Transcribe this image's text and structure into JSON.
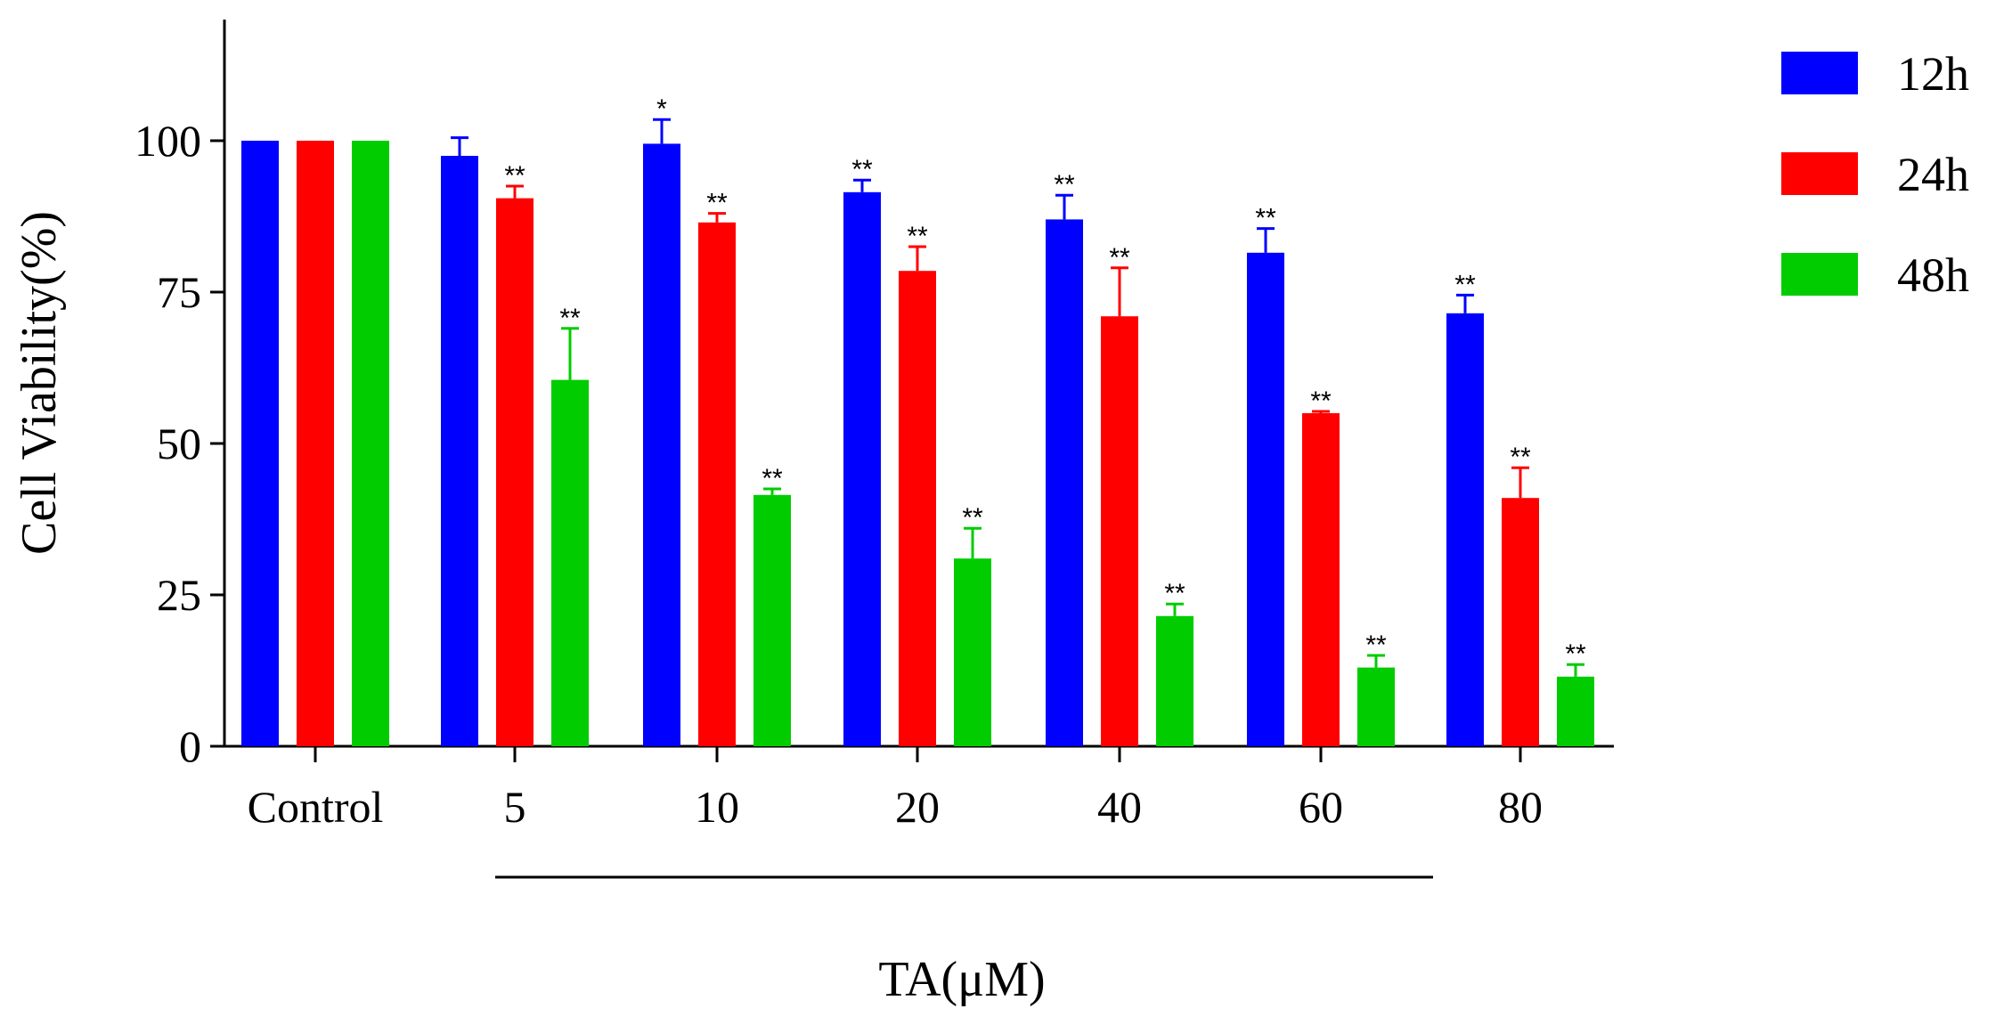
{
  "chart_data": {
    "type": "bar",
    "title": "",
    "xlabel": "TA(μM)",
    "ylabel": "Cell Viability(%)",
    "ylim": [
      0,
      120
    ],
    "yticks": [
      0,
      25,
      50,
      75,
      100
    ],
    "ytick_labels": [
      "0",
      "25",
      "50",
      "75",
      "100"
    ],
    "categories": [
      "Control",
      "5",
      "10",
      "20",
      "40",
      "60",
      "80"
    ],
    "treatment_bracket": {
      "from": "5",
      "to": "80"
    },
    "legend_position": "top-right",
    "series": [
      {
        "name": "12h",
        "color": "#0000FF",
        "values": [
          100,
          97.5,
          99.5,
          91.5,
          87,
          81.5,
          71.5
        ],
        "errors": [
          0,
          3,
          4,
          2,
          4,
          4,
          3
        ],
        "stars": [
          "",
          "",
          "*",
          "**",
          "**",
          "**",
          "**"
        ]
      },
      {
        "name": "24h",
        "color": "#FF0000",
        "values": [
          100,
          90.5,
          86.5,
          78.5,
          71,
          55,
          41
        ],
        "errors": [
          0,
          2,
          1.5,
          4,
          8,
          0.3,
          5
        ],
        "stars": [
          "",
          "**",
          "**",
          "**",
          "**",
          "**",
          "**"
        ]
      },
      {
        "name": "48h",
        "color": "#00CC00",
        "values": [
          100,
          60.5,
          41.5,
          31,
          21.5,
          13,
          11.5
        ],
        "errors": [
          0,
          8.5,
          1,
          5,
          2,
          2,
          2
        ],
        "stars": [
          "",
          "**",
          "**",
          "**",
          "**",
          "**",
          "**"
        ]
      }
    ]
  }
}
